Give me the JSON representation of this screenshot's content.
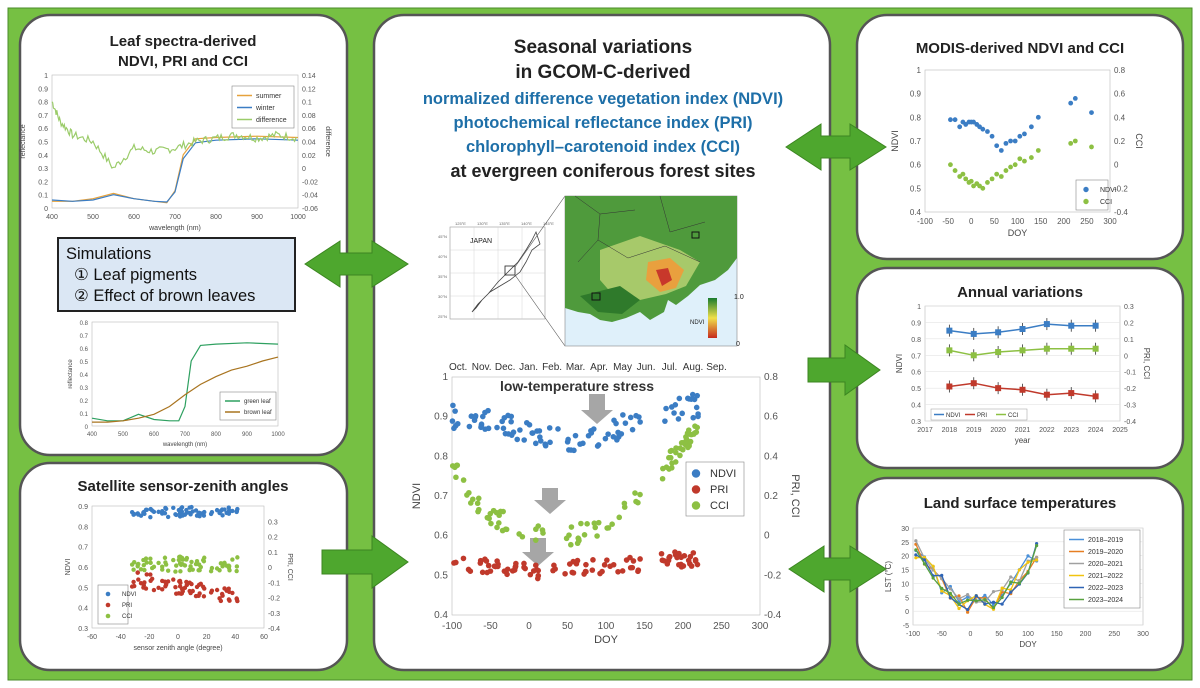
{
  "colors": {
    "panel_bg": "#ffffff",
    "frame": "#76c043",
    "border": "#444444",
    "arrow": "#4ea72e",
    "ndvi": "#3b7dc4",
    "pri": "#c0392b",
    "cci": "#8dc043",
    "heading_blue": "#1e6fa8"
  },
  "center": {
    "title_lines": [
      "Seasonal variations",
      "in GCOM-C-derived"
    ],
    "index_lines": [
      "normalized difference vegetation index (NDVI)",
      "photochemical reflectance index (PRI)",
      "chlorophyll–carotenoid index (CCI)"
    ],
    "subtitle": "at evergreen coniferous forest sites",
    "map": {
      "country": "JAPAN",
      "legend_title": "NDVI",
      "legend_max": "1.0",
      "legend_min": "0",
      "lat_labels": [
        "45°N",
        "40°N",
        "35°N",
        "30°N",
        "25°N"
      ],
      "lon_labels": [
        "125°E",
        "130°E",
        "135°E",
        "140°E",
        "145°E"
      ]
    }
  },
  "chart_data": [
    {
      "type": "line",
      "title": "Leaf spectra-derived\nNDVI, PRI and CCI",
      "xlabel": "wavelength (nm)",
      "ylabel": "reflectance",
      "y2label": "difference",
      "xlim": [
        400,
        1000
      ],
      "ylim": [
        0,
        1
      ],
      "y2lim": [
        -0.06,
        0.14
      ],
      "xticks": [
        400,
        500,
        600,
        700,
        800,
        900,
        1000
      ],
      "yticks": [
        0,
        0.1,
        0.2,
        0.3,
        0.4,
        0.5,
        0.6,
        0.7,
        0.8,
        0.9,
        1
      ],
      "y2ticks": [
        -0.06,
        -0.04,
        -0.02,
        0,
        0.02,
        0.04,
        0.06,
        0.08,
        0.1,
        0.12,
        0.14
      ],
      "legend": [
        "summer",
        "winter",
        "difference"
      ],
      "series": [
        {
          "name": "summer",
          "x": [
            400,
            450,
            500,
            550,
            600,
            650,
            680,
            700,
            720,
            750,
            800,
            900,
            1000
          ],
          "values": [
            0.05,
            0.05,
            0.07,
            0.11,
            0.07,
            0.05,
            0.04,
            0.13,
            0.4,
            0.52,
            0.53,
            0.54,
            0.53
          ]
        },
        {
          "name": "winter",
          "x": [
            400,
            450,
            500,
            550,
            600,
            650,
            680,
            700,
            720,
            750,
            800,
            900,
            1000
          ],
          "values": [
            0.06,
            0.05,
            0.06,
            0.1,
            0.07,
            0.05,
            0.045,
            0.12,
            0.37,
            0.49,
            0.51,
            0.52,
            0.51
          ]
        },
        {
          "name": "difference",
          "x": [
            400,
            420,
            450,
            500,
            550,
            600,
            650,
            700,
            750,
            800,
            850,
            900,
            950,
            1000
          ],
          "values": [
            0.1,
            0.07,
            0.05,
            0.04,
            0.0,
            0.03,
            0.025,
            0.03,
            0.04,
            0.045,
            0.05,
            0.045,
            0.05,
            0.045
          ]
        }
      ]
    },
    {
      "type": "line",
      "xlabel": "wavelength (nm)",
      "ylabel": "reflectance",
      "xlim": [
        400,
        1000
      ],
      "ylim": [
        0,
        0.8
      ],
      "xticks": [
        400,
        500,
        600,
        700,
        800,
        900,
        1000
      ],
      "yticks": [
        0,
        0.1,
        0.2,
        0.3,
        0.4,
        0.5,
        0.6,
        0.7,
        0.8
      ],
      "legend": [
        "green leaf",
        "brown leaf"
      ],
      "series": [
        {
          "name": "green leaf",
          "x": [
            400,
            450,
            500,
            550,
            600,
            650,
            680,
            700,
            720,
            750,
            800,
            900,
            1000
          ],
          "values": [
            0.06,
            0.04,
            0.04,
            0.09,
            0.05,
            0.04,
            0.04,
            0.15,
            0.5,
            0.62,
            0.63,
            0.64,
            0.63
          ]
        },
        {
          "name": "brown leaf",
          "x": [
            400,
            450,
            500,
            550,
            600,
            650,
            700,
            750,
            800,
            850,
            900,
            950,
            1000
          ],
          "values": [
            0.03,
            0.03,
            0.04,
            0.06,
            0.09,
            0.15,
            0.24,
            0.32,
            0.38,
            0.43,
            0.46,
            0.5,
            0.53
          ]
        }
      ]
    },
    {
      "type": "scatter",
      "title": "Satellite sensor-zenith angles",
      "xlabel": "sensor zenith angle (degree)",
      "ylabel": "NDVI",
      "y2label": "PRI, CCI",
      "xlim": [
        -60,
        60
      ],
      "ylim": [
        0.3,
        0.9
      ],
      "y2lim": [
        -0.4,
        0.4
      ],
      "xticks": [
        -60,
        -40,
        -20,
        0,
        20,
        40,
        60
      ],
      "yticks": [
        0.3,
        0.4,
        0.5,
        0.6,
        0.7,
        0.8,
        0.9
      ],
      "y2ticks": [
        -0.4,
        -0.3,
        -0.2,
        -0.1,
        0,
        0.1,
        0.2,
        0.3
      ],
      "legend": [
        "NDVI",
        "PRI",
        "CCI"
      ],
      "series": [
        {
          "name": "NDVI",
          "center": 0.87,
          "spread": 0.04
        },
        {
          "name": "CCI",
          "center": 0.02,
          "spread": 0.04
        },
        {
          "name": "PRI",
          "center": -0.24,
          "slope": -0.0016
        }
      ]
    },
    {
      "type": "scatter",
      "title": "MODIS-derived NDVI and CCI",
      "xlabel": "DOY",
      "ylabel": "NDVI",
      "y2label": "CCI",
      "xlim": [
        -100,
        300
      ],
      "ylim": [
        0.4,
        1.0
      ],
      "y2lim": [
        -0.4,
        0.8
      ],
      "xticks": [
        -100,
        -50,
        0,
        50,
        100,
        150,
        200,
        250,
        300
      ],
      "yticks": [
        0.4,
        0.5,
        0.6,
        0.7,
        0.8,
        0.9,
        1.0
      ],
      "y2ticks": [
        -0.4,
        -0.2,
        0,
        0.2,
        0.4,
        0.6,
        0.8
      ],
      "legend": [
        "NDVI",
        "CCI"
      ],
      "series": [
        {
          "name": "NDVI",
          "x": [
            -45,
            -35,
            -25,
            -18,
            -12,
            -5,
            0,
            5,
            12,
            18,
            25,
            35,
            45,
            55,
            65,
            75,
            85,
            95,
            105,
            115,
            130,
            145,
            215,
            225,
            260
          ],
          "values": [
            0.79,
            0.79,
            0.76,
            0.78,
            0.77,
            0.78,
            0.78,
            0.78,
            0.77,
            0.76,
            0.75,
            0.74,
            0.72,
            0.68,
            0.66,
            0.69,
            0.7,
            0.7,
            0.72,
            0.73,
            0.76,
            0.8,
            0.86,
            0.88,
            0.82
          ]
        },
        {
          "name": "CCI",
          "x": [
            -45,
            -35,
            -25,
            -18,
            -12,
            -5,
            0,
            5,
            12,
            18,
            25,
            35,
            45,
            55,
            65,
            75,
            85,
            95,
            105,
            115,
            130,
            145,
            215,
            225,
            260
          ],
          "values": [
            0,
            -0.05,
            -0.1,
            -0.08,
            -0.12,
            -0.15,
            -0.14,
            -0.18,
            -0.16,
            -0.18,
            -0.2,
            -0.15,
            -0.12,
            -0.08,
            -0.1,
            -0.05,
            -0.02,
            0.0,
            0.05,
            0.03,
            0.06,
            0.12,
            0.18,
            0.2,
            0.15
          ]
        }
      ]
    },
    {
      "type": "scatter",
      "title": "Seasonal variations",
      "xlabel": "DOY",
      "ylabel": "NDVI",
      "y2label": "PRI, CCI",
      "xlim": [
        -100,
        300
      ],
      "ylim": [
        0.4,
        1.0
      ],
      "y2lim": [
        -0.4,
        0.8
      ],
      "xticks": [
        -100,
        -50,
        0,
        50,
        100,
        150,
        200,
        250,
        300
      ],
      "yticks": [
        0.4,
        0.5,
        0.6,
        0.7,
        0.8,
        0.9,
        1
      ],
      "y2ticks": [
        -0.4,
        -0.2,
        0,
        0.2,
        0.4,
        0.6,
        0.8
      ],
      "months": [
        "Oct.",
        "Nov.",
        "Dec.",
        "Jan.",
        "Feb.",
        "Mar.",
        "Apr.",
        "May",
        "Jun.",
        "Jul.",
        "Aug.",
        "Sep."
      ],
      "annotation": "low-temperature stress",
      "legend": [
        "NDVI",
        "PRI",
        "CCI"
      ],
      "series": [
        {
          "name": "NDVI",
          "base": [
            [
              -100,
              0.9
            ],
            [
              -50,
              0.89
            ],
            [
              0,
              0.86
            ],
            [
              50,
              0.84
            ],
            [
              100,
              0.86
            ],
            [
              150,
              0.9
            ],
            [
              175,
              0.91
            ],
            [
              220,
              0.93
            ]
          ],
          "jitter": 0.03
        },
        {
          "name": "PRI",
          "base": [
            [
              -100,
              0.535
            ],
            [
              -50,
              0.525
            ],
            [
              0,
              0.51
            ],
            [
              50,
              0.515
            ],
            [
              100,
              0.525
            ],
            [
              150,
              0.53
            ],
            [
              175,
              0.54
            ],
            [
              220,
              0.54
            ]
          ],
          "jitter": 0.02
        },
        {
          "name": "CCI",
          "base": [
            [
              -100,
              0.78
            ],
            [
              -75,
              0.7
            ],
            [
              -50,
              0.65
            ],
            [
              -25,
              0.63
            ],
            [
              0,
              0.61
            ],
            [
              25,
              0.6
            ],
            [
              50,
              0.6
            ],
            [
              75,
              0.61
            ],
            [
              100,
              0.63
            ],
            [
              125,
              0.67
            ],
            [
              150,
              0.72
            ],
            [
              175,
              0.77
            ],
            [
              200,
              0.83
            ],
            [
              220,
              0.87
            ]
          ],
          "jitter": 0.025
        }
      ]
    },
    {
      "type": "line",
      "title": "Annual variations",
      "xlabel": "year",
      "ylabel": "NDVI",
      "y2label": "PRI, CCI",
      "xlim": [
        2017,
        2025
      ],
      "ylim": [
        0.3,
        1.0
      ],
      "y2lim": [
        -0.4,
        0.3
      ],
      "xticks": [
        2017,
        2018,
        2019,
        2020,
        2021,
        2022,
        2023,
        2024,
        2025
      ],
      "yticks": [
        0.3,
        0.4,
        0.5,
        0.6,
        0.7,
        0.8,
        0.9,
        1
      ],
      "y2ticks": [
        -0.4,
        -0.3,
        -0.2,
        -0.1,
        0,
        0.1,
        0.2,
        0.3
      ],
      "legend": [
        "NDVI",
        "PRI",
        "CCI"
      ],
      "x": [
        2018,
        2019,
        2020,
        2021,
        2022,
        2023,
        2024
      ],
      "series": [
        {
          "name": "NDVI",
          "values": [
            0.85,
            0.83,
            0.84,
            0.86,
            0.89,
            0.88,
            0.88
          ]
        },
        {
          "name": "PRI",
          "values": [
            -0.19,
            -0.17,
            -0.2,
            -0.21,
            -0.24,
            -0.23,
            -0.25
          ]
        },
        {
          "name": "CCI",
          "values": [
            0.03,
            0.0,
            0.02,
            0.03,
            0.04,
            0.04,
            0.04
          ]
        }
      ]
    },
    {
      "type": "line",
      "title": "Land surface temperatures",
      "xlabel": "DOY",
      "ylabel": "LST (°C)",
      "xlim": [
        -100,
        300
      ],
      "ylim": [
        -5,
        30
      ],
      "xticks": [
        -100,
        -50,
        0,
        50,
        100,
        150,
        200,
        250,
        300
      ],
      "yticks": [
        -5,
        0,
        5,
        10,
        15,
        20,
        25,
        30
      ],
      "legend": [
        "2018–2019",
        "2019–2020",
        "2020–2021",
        "2021–2022",
        "2022–2023",
        "2023–2024"
      ],
      "series_colors": [
        "#4a90d9",
        "#e67e22",
        "#a0a0a0",
        "#f1c40f",
        "#2e64b5",
        "#58a13f"
      ],
      "x": [
        -95,
        -80,
        -65,
        -50,
        -35,
        -20,
        -5,
        10,
        25,
        40,
        55,
        70,
        85,
        100,
        115
      ],
      "base": [
        22,
        18,
        14,
        10,
        7,
        4,
        3,
        3,
        3,
        4,
        6,
        9,
        13,
        17,
        21
      ]
    }
  ],
  "arrows": [
    "double",
    "double",
    "right",
    "right",
    "double",
    "double"
  ]
}
